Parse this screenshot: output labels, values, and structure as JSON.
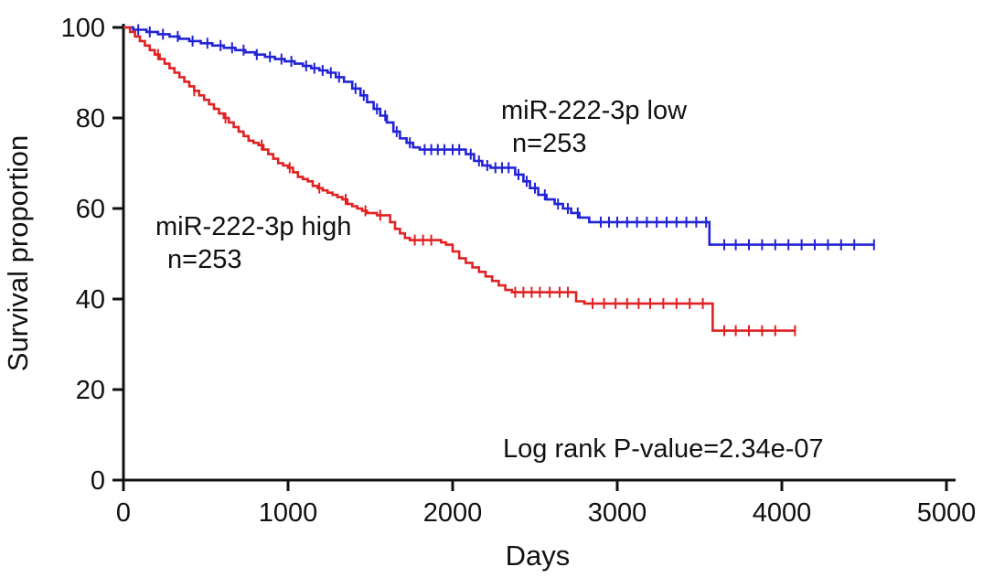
{
  "chart_data": {
    "type": "line",
    "chart_kind": "kaplan-meier-survival",
    "title": "",
    "xlabel": "Days",
    "ylabel": "Survival proportion",
    "xlim": [
      0,
      5000
    ],
    "ylim": [
      0,
      100
    ],
    "xticks": [
      0,
      1000,
      2000,
      3000,
      4000,
      5000
    ],
    "yticks": [
      0,
      20,
      40,
      60,
      80,
      100
    ],
    "grid": false,
    "legend_position": "inline-annotations",
    "pvalue_label": "Log rank P-value=2.34e-07",
    "axis_color": "#111111",
    "series": [
      {
        "name": "miR-222-3p low",
        "n_label": "n=253",
        "n": 253,
        "color": "#2323d6",
        "steps": [
          [
            0,
            100
          ],
          [
            60,
            99.5
          ],
          [
            140,
            99
          ],
          [
            210,
            98.5
          ],
          [
            280,
            98
          ],
          [
            340,
            97.5
          ],
          [
            400,
            97
          ],
          [
            470,
            96.5
          ],
          [
            540,
            96
          ],
          [
            610,
            95.5
          ],
          [
            680,
            95
          ],
          [
            740,
            94.5
          ],
          [
            800,
            94
          ],
          [
            860,
            93.5
          ],
          [
            920,
            93
          ],
          [
            980,
            92.5
          ],
          [
            1040,
            92
          ],
          [
            1090,
            91.5
          ],
          [
            1140,
            91
          ],
          [
            1190,
            90.5
          ],
          [
            1240,
            90
          ],
          [
            1290,
            89
          ],
          [
            1340,
            88
          ],
          [
            1390,
            86.5
          ],
          [
            1440,
            85
          ],
          [
            1480,
            83.5
          ],
          [
            1520,
            82
          ],
          [
            1560,
            80.5
          ],
          [
            1600,
            79
          ],
          [
            1640,
            77
          ],
          [
            1680,
            75.5
          ],
          [
            1720,
            74.5
          ],
          [
            1760,
            73.5
          ],
          [
            1800,
            73
          ],
          [
            2080,
            72
          ],
          [
            2130,
            70.5
          ],
          [
            2180,
            69.5
          ],
          [
            2230,
            69
          ],
          [
            2380,
            67.5
          ],
          [
            2430,
            66
          ],
          [
            2470,
            64.5
          ],
          [
            2520,
            63
          ],
          [
            2570,
            62
          ],
          [
            2620,
            61
          ],
          [
            2670,
            60
          ],
          [
            2720,
            59
          ],
          [
            2770,
            58
          ],
          [
            2830,
            57
          ],
          [
            3560,
            52
          ],
          [
            4560,
            52
          ]
        ],
        "censor_days": [
          90,
          160,
          240,
          330,
          420,
          510,
          590,
          660,
          730,
          810,
          890,
          960,
          1020,
          1110,
          1160,
          1210,
          1260,
          1310,
          1410,
          1460,
          1540,
          1590,
          1660,
          1740,
          1830,
          1870,
          1910,
          1950,
          2000,
          2040,
          2110,
          2160,
          2210,
          2260,
          2300,
          2340,
          2400,
          2450,
          2500,
          2560,
          2640,
          2700,
          2760,
          2900,
          2950,
          3000,
          3060,
          3120,
          3180,
          3240,
          3300,
          3360,
          3420,
          3480,
          3540,
          3650,
          3720,
          3800,
          3880,
          3960,
          4040,
          4120,
          4200,
          4280,
          4360,
          4440,
          4560
        ]
      },
      {
        "name": "miR-222-3p high",
        "n_label": "n=253",
        "n": 253,
        "color": "#e02222",
        "steps": [
          [
            0,
            100
          ],
          [
            40,
            99
          ],
          [
            70,
            98
          ],
          [
            100,
            97
          ],
          [
            130,
            96
          ],
          [
            160,
            95
          ],
          [
            190,
            94
          ],
          [
            220,
            93
          ],
          [
            250,
            92
          ],
          [
            280,
            91
          ],
          [
            310,
            90
          ],
          [
            340,
            89
          ],
          [
            370,
            88
          ],
          [
            400,
            87
          ],
          [
            430,
            86
          ],
          [
            460,
            85
          ],
          [
            490,
            84
          ],
          [
            520,
            83
          ],
          [
            550,
            82
          ],
          [
            580,
            81
          ],
          [
            610,
            80
          ],
          [
            640,
            79
          ],
          [
            670,
            78
          ],
          [
            700,
            77
          ],
          [
            730,
            76
          ],
          [
            760,
            75
          ],
          [
            790,
            74.5
          ],
          [
            820,
            74
          ],
          [
            850,
            73
          ],
          [
            880,
            72
          ],
          [
            910,
            71
          ],
          [
            940,
            70
          ],
          [
            970,
            69.5
          ],
          [
            1000,
            69
          ],
          [
            1030,
            68
          ],
          [
            1060,
            67
          ],
          [
            1090,
            66.5
          ],
          [
            1120,
            66
          ],
          [
            1150,
            65
          ],
          [
            1180,
            64.5
          ],
          [
            1210,
            64
          ],
          [
            1240,
            63.5
          ],
          [
            1270,
            63
          ],
          [
            1300,
            62.5
          ],
          [
            1330,
            62
          ],
          [
            1360,
            61
          ],
          [
            1390,
            60.5
          ],
          [
            1420,
            60
          ],
          [
            1450,
            59.5
          ],
          [
            1480,
            59
          ],
          [
            1540,
            58.5
          ],
          [
            1620,
            57
          ],
          [
            1650,
            55.5
          ],
          [
            1680,
            54.5
          ],
          [
            1710,
            53.5
          ],
          [
            1740,
            53
          ],
          [
            1930,
            52.5
          ],
          [
            1960,
            52
          ],
          [
            2000,
            50.5
          ],
          [
            2040,
            49
          ],
          [
            2080,
            48
          ],
          [
            2120,
            47
          ],
          [
            2160,
            46
          ],
          [
            2200,
            45
          ],
          [
            2240,
            44
          ],
          [
            2280,
            43
          ],
          [
            2320,
            42
          ],
          [
            2360,
            41.5
          ],
          [
            2750,
            39.5
          ],
          [
            2800,
            39
          ],
          [
            3580,
            33
          ],
          [
            4080,
            33
          ]
        ],
        "censor_days": [
          210,
          430,
          620,
          840,
          1010,
          1190,
          1350,
          1470,
          1560,
          1770,
          1820,
          1870,
          2380,
          2430,
          2480,
          2530,
          2590,
          2650,
          2700,
          2850,
          2920,
          2990,
          3060,
          3130,
          3200,
          3280,
          3360,
          3440,
          3520,
          3650,
          3720,
          3800,
          3880,
          3960,
          4080
        ]
      }
    ]
  }
}
